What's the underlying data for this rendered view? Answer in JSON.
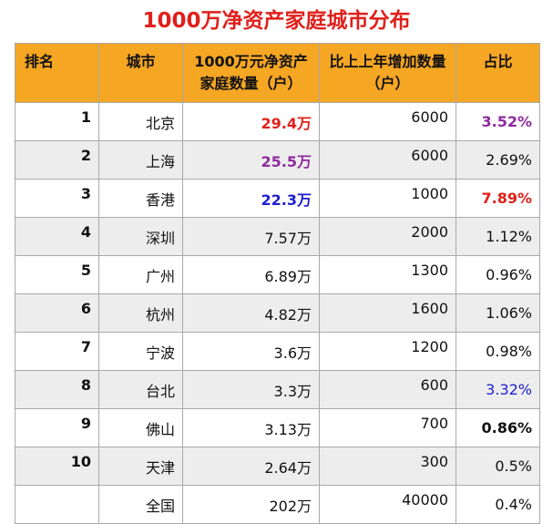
{
  "title": "1000万净资产家庭城市分布",
  "headers": {
    "rank": "排名",
    "city": "城市",
    "households": "1000万元净资产家庭数量（户）",
    "increase": "比上上年增加数量（户）",
    "share": "占比"
  },
  "rows": [
    {
      "rank": "1",
      "city": "北京",
      "households": "29.4万",
      "increase": "6000",
      "share": "3.52%"
    },
    {
      "rank": "2",
      "city": "上海",
      "households": "25.5万",
      "increase": "6000",
      "share": "2.69%"
    },
    {
      "rank": "3",
      "city": "香港",
      "households": "22.3万",
      "increase": "1000",
      "share": "7.89%"
    },
    {
      "rank": "4",
      "city": "深圳",
      "households": "7.57万",
      "increase": "2000",
      "share": "1.12%"
    },
    {
      "rank": "5",
      "city": "广州",
      "households": "6.89万",
      "increase": "1300",
      "share": "0.96%"
    },
    {
      "rank": "6",
      "city": "杭州",
      "households": "4.82万",
      "increase": "1600",
      "share": "1.06%"
    },
    {
      "rank": "7",
      "city": "宁波",
      "households": "3.6万",
      "increase": "1200",
      "share": "0.98%"
    },
    {
      "rank": "8",
      "city": "台北",
      "households": "3.3万",
      "increase": "600",
      "share": "3.32%"
    },
    {
      "rank": "9",
      "city": "佛山",
      "households": "3.13万",
      "increase": "700",
      "share": "0.86%"
    },
    {
      "rank": "10",
      "city": "天津",
      "households": "2.64万",
      "increase": "300",
      "share": "0.5%"
    },
    {
      "rank": "",
      "city": "全国",
      "households": "202万",
      "increase": "40000",
      "share": "0.4%"
    }
  ],
  "colors": {
    "title": "#e0201b",
    "header_bg": "#f5a623",
    "highlight_red": "#e0201b",
    "highlight_purple": "#8e2a9e",
    "highlight_blue": "#1e1ed0"
  }
}
